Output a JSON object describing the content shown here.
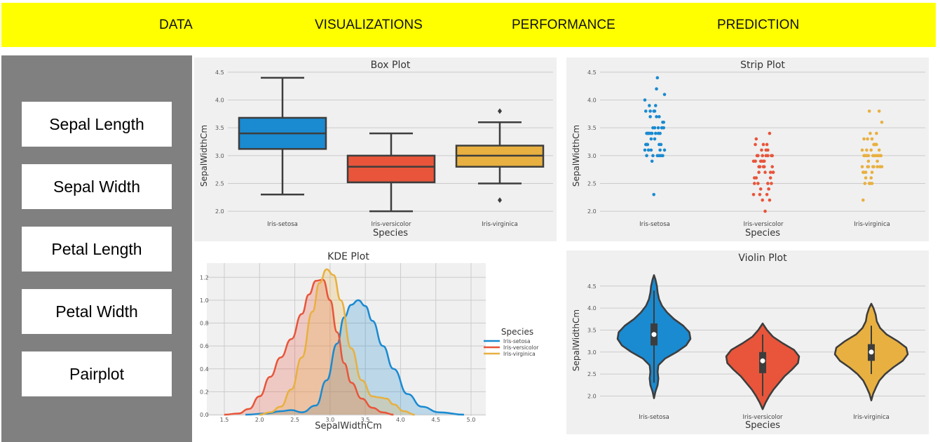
{
  "nav": {
    "items": [
      "DATA",
      "VISUALIZATIONS",
      "PERFORMANCE",
      "PREDICTION"
    ],
    "background": "#ffff00"
  },
  "sidebar": {
    "items": [
      "Sepal Length",
      "Sepal Width",
      "Petal Length",
      "Petal Width",
      "Pairplot"
    ],
    "background": "#808080"
  },
  "colors": {
    "setosa": "#1a8ad1",
    "versicolor": "#e8553a",
    "virginica": "#e8b040",
    "plot_bg": "#f0f0f0",
    "grid": "#cbcbcb"
  },
  "chart_data": [
    {
      "type": "box",
      "title": "Box Plot",
      "xlabel": "Species",
      "ylabel": "SepalWidthCm",
      "categories": [
        "Iris-setosa",
        "Iris-versicolor",
        "Iris-virginica"
      ],
      "ylim": [
        1.9,
        4.6
      ],
      "yticks": [
        "2.0",
        "2.5",
        "3.0",
        "3.5",
        "4.0",
        "4.5"
      ],
      "grid": true,
      "boxes": [
        {
          "whisker_low": 2.3,
          "q1": 3.12,
          "median": 3.4,
          "q3": 3.68,
          "whisker_high": 4.4,
          "outliers": []
        },
        {
          "whisker_low": 2.0,
          "q1": 2.52,
          "median": 2.8,
          "q3": 3.0,
          "whisker_high": 3.4,
          "outliers": []
        },
        {
          "whisker_low": 2.5,
          "q1": 2.8,
          "median": 3.0,
          "q3": 3.18,
          "whisker_high": 3.6,
          "outliers": [
            2.2,
            3.8
          ]
        }
      ]
    },
    {
      "type": "scatter",
      "subtype": "strip",
      "title": "Strip Plot",
      "xlabel": "Species",
      "ylabel": "SepalWidthCm",
      "categories": [
        "Iris-setosa",
        "Iris-versicolor",
        "Iris-virginica"
      ],
      "ylim": [
        1.9,
        4.6
      ],
      "yticks": [
        "2.0",
        "2.5",
        "3.0",
        "3.5",
        "4.0",
        "4.5"
      ],
      "grid": true,
      "series": [
        {
          "values": [
            3.5,
            3.0,
            3.2,
            3.1,
            3.6,
            3.9,
            3.4,
            3.4,
            2.9,
            3.1,
            3.7,
            3.4,
            3.0,
            3.0,
            4.0,
            4.4,
            3.9,
            3.5,
            3.8,
            3.8,
            3.4,
            3.7,
            3.6,
            3.3,
            3.4,
            3.0,
            3.4,
            3.5,
            3.4,
            3.2,
            3.1,
            3.4,
            4.1,
            4.2,
            3.1,
            3.2,
            3.5,
            3.1,
            3.0,
            3.4,
            3.5,
            2.3,
            3.2,
            3.5,
            3.8,
            3.0,
            3.8,
            3.2,
            3.7,
            3.3
          ]
        },
        {
          "values": [
            3.2,
            3.2,
            3.1,
            2.3,
            2.8,
            2.8,
            3.3,
            2.4,
            2.9,
            2.7,
            2.0,
            3.0,
            2.2,
            2.9,
            2.9,
            3.1,
            3.0,
            2.7,
            2.2,
            2.5,
            3.2,
            2.8,
            2.5,
            2.8,
            2.9,
            3.0,
            2.8,
            3.0,
            2.9,
            2.6,
            2.4,
            2.4,
            2.7,
            2.7,
            3.0,
            3.4,
            3.1,
            2.3,
            3.0,
            2.5,
            2.6,
            3.0,
            2.6,
            2.3,
            2.7,
            3.0,
            2.9,
            2.9,
            2.5,
            2.8
          ]
        },
        {
          "values": [
            3.3,
            2.7,
            3.0,
            2.9,
            3.0,
            3.0,
            2.5,
            2.9,
            2.5,
            3.6,
            3.2,
            2.7,
            3.0,
            2.5,
            2.8,
            3.2,
            3.0,
            3.8,
            2.6,
            2.2,
            3.2,
            2.8,
            2.8,
            2.7,
            3.3,
            3.2,
            2.8,
            3.0,
            2.8,
            3.0,
            2.8,
            3.8,
            2.8,
            2.8,
            2.6,
            3.0,
            3.4,
            3.1,
            3.0,
            3.1,
            3.1,
            3.1,
            2.7,
            3.2,
            3.3,
            3.0,
            2.5,
            3.0,
            3.4,
            3.0
          ]
        }
      ]
    },
    {
      "type": "area",
      "subtype": "kde",
      "title": "KDE Plot",
      "xlabel": "SepalWidthCm",
      "ylabel": "",
      "xlim": [
        1.5,
        5.0
      ],
      "ylim": [
        0,
        1.3
      ],
      "xticks": [
        "1.5",
        "2.0",
        "2.5",
        "3.0",
        "3.5",
        "4.0",
        "4.5",
        "5.0"
      ],
      "yticks": [
        "0.0",
        "0.2",
        "0.4",
        "0.6",
        "0.8",
        "1.0",
        "1.2"
      ],
      "grid": true,
      "legend": {
        "title": "Species",
        "position": "right"
      },
      "series": [
        {
          "name": "Iris-setosa",
          "x": [
            1.8,
            2.1,
            2.3,
            2.45,
            2.6,
            2.8,
            2.95,
            3.1,
            3.2,
            3.3,
            3.4,
            3.5,
            3.6,
            3.75,
            3.9,
            4.1,
            4.3,
            4.55,
            4.9
          ],
          "y": [
            0,
            0.01,
            0.03,
            0.04,
            0.02,
            0.08,
            0.3,
            0.62,
            0.85,
            0.96,
            1.0,
            0.95,
            0.82,
            0.6,
            0.4,
            0.18,
            0.07,
            0.02,
            0
          ]
        },
        {
          "name": "Iris-versicolor",
          "x": [
            1.5,
            1.7,
            1.85,
            2.0,
            2.15,
            2.3,
            2.45,
            2.6,
            2.7,
            2.8,
            2.9,
            3.0,
            3.1,
            3.2,
            3.3,
            3.45,
            3.6,
            3.75,
            3.9
          ],
          "y": [
            0,
            0.01,
            0.05,
            0.16,
            0.33,
            0.5,
            0.66,
            0.88,
            1.05,
            1.17,
            1.18,
            1.0,
            0.72,
            0.45,
            0.28,
            0.14,
            0.06,
            0.02,
            0
          ]
        },
        {
          "name": "Iris-virginica",
          "x": [
            2.0,
            2.15,
            2.3,
            2.45,
            2.6,
            2.75,
            2.85,
            2.95,
            3.05,
            3.15,
            3.3,
            3.45,
            3.6,
            3.7,
            3.8,
            3.9,
            4.05,
            4.2
          ],
          "y": [
            0,
            0.02,
            0.07,
            0.22,
            0.5,
            0.9,
            1.15,
            1.27,
            1.22,
            1.0,
            0.58,
            0.3,
            0.16,
            0.15,
            0.14,
            0.09,
            0.03,
            0
          ]
        }
      ]
    },
    {
      "type": "violin",
      "title": "Violin Plot",
      "xlabel": "Species",
      "ylabel": "SepalWidthCm",
      "categories": [
        "Iris-setosa",
        "Iris-versicolor",
        "Iris-virginica"
      ],
      "ylim": [
        1.8,
        4.8
      ],
      "yticks": [
        "2.0",
        "2.5",
        "3.0",
        "3.5",
        "4.0",
        "4.5"
      ],
      "grid": true,
      "violins": [
        {
          "min": 1.95,
          "max": 4.75,
          "q1": 3.15,
          "median": 3.4,
          "q3": 3.65,
          "whisker_low": 2.3,
          "whisker_high": 4.4,
          "profile": [
            [
              1.95,
              0.0
            ],
            [
              2.1,
              0.04
            ],
            [
              2.25,
              0.1
            ],
            [
              2.4,
              0.12
            ],
            [
              2.55,
              0.1
            ],
            [
              2.7,
              0.12
            ],
            [
              2.85,
              0.3
            ],
            [
              3.0,
              0.62
            ],
            [
              3.15,
              0.88
            ],
            [
              3.3,
              1.0
            ],
            [
              3.45,
              0.97
            ],
            [
              3.6,
              0.8
            ],
            [
              3.75,
              0.55
            ],
            [
              3.9,
              0.36
            ],
            [
              4.05,
              0.22
            ],
            [
              4.2,
              0.14
            ],
            [
              4.35,
              0.1
            ],
            [
              4.5,
              0.08
            ],
            [
              4.65,
              0.04
            ],
            [
              4.75,
              0.0
            ]
          ]
        },
        {
          "min": 1.7,
          "max": 3.65,
          "q1": 2.52,
          "median": 2.8,
          "q3": 3.0,
          "whisker_low": 2.0,
          "whisker_high": 3.4,
          "profile": [
            [
              1.7,
              0.0
            ],
            [
              1.85,
              0.08
            ],
            [
              2.0,
              0.18
            ],
            [
              2.15,
              0.3
            ],
            [
              2.3,
              0.45
            ],
            [
              2.45,
              0.6
            ],
            [
              2.6,
              0.8
            ],
            [
              2.75,
              0.97
            ],
            [
              2.9,
              1.0
            ],
            [
              3.05,
              0.86
            ],
            [
              3.2,
              0.55
            ],
            [
              3.35,
              0.28
            ],
            [
              3.5,
              0.12
            ],
            [
              3.65,
              0.0
            ]
          ]
        },
        {
          "min": 1.9,
          "max": 4.1,
          "q1": 2.8,
          "median": 3.0,
          "q3": 3.18,
          "whisker_low": 2.5,
          "whisker_high": 3.6,
          "profile": [
            [
              1.9,
              0.0
            ],
            [
              2.05,
              0.05
            ],
            [
              2.2,
              0.13
            ],
            [
              2.35,
              0.22
            ],
            [
              2.5,
              0.38
            ],
            [
              2.65,
              0.6
            ],
            [
              2.8,
              0.86
            ],
            [
              2.95,
              1.0
            ],
            [
              3.1,
              0.96
            ],
            [
              3.25,
              0.72
            ],
            [
              3.4,
              0.42
            ],
            [
              3.55,
              0.24
            ],
            [
              3.7,
              0.15
            ],
            [
              3.85,
              0.12
            ],
            [
              4.0,
              0.06
            ],
            [
              4.1,
              0.0
            ]
          ]
        }
      ]
    }
  ]
}
